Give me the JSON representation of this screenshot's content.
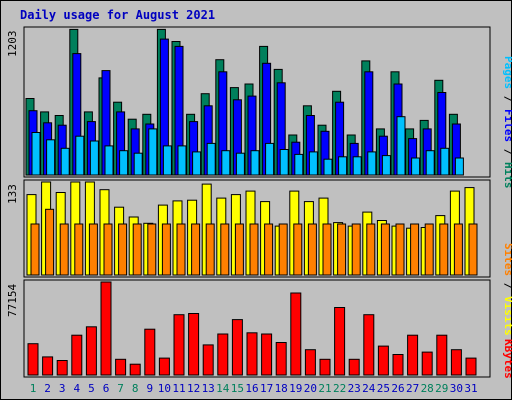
{
  "chart_data": {
    "type": "bar",
    "title": "Daily usage for August 2021",
    "categories": [
      "1",
      "2",
      "3",
      "4",
      "5",
      "6",
      "7",
      "8",
      "9",
      "10",
      "11",
      "12",
      "13",
      "14",
      "15",
      "16",
      "17",
      "18",
      "19",
      "20",
      "21",
      "22",
      "23",
      "24",
      "25",
      "26",
      "27",
      "28",
      "29",
      "30",
      "31"
    ],
    "weekend_days": [
      "1",
      "7",
      "8",
      "14",
      "15",
      "21",
      "22",
      "28",
      "29"
    ],
    "colors": {
      "background": "#c0c0c0",
      "frame": "#000000",
      "title": "#0000c0",
      "hits": "#00805c",
      "files": "#0000ff",
      "pages": "#00c0ff",
      "visits": "#ffff00",
      "sites": "#ff8000",
      "kbytes": "#ff0000",
      "weekday_label": "#0000c0",
      "weekend_label": "#00805c"
    },
    "panels": [
      {
        "name": "top",
        "ymax_label": "1203",
        "ymax": 1203,
        "series": [
          {
            "name": "Hits",
            "color": "#00805c",
            "values": [
              630,
              520,
              490,
              1200,
              520,
              800,
              600,
              460,
              500,
              1200,
              1100,
              500,
              670,
              950,
              720,
              750,
              1060,
              870,
              330,
              570,
              410,
              690,
              330,
              940,
              380,
              850,
              380,
              450,
              780,
              500,
              0
            ]
          },
          {
            "name": "Files",
            "color": "#0000ff",
            "values": [
              530,
              430,
              410,
              1000,
              440,
              860,
              520,
              380,
              420,
              1120,
              1060,
              440,
              570,
              850,
              620,
              650,
              920,
              760,
              270,
              490,
              360,
              600,
              260,
              850,
              320,
              750,
              300,
              380,
              680,
              420,
              0
            ]
          },
          {
            "name": "Pages",
            "color": "#00c0ff",
            "values": [
              350,
              290,
              220,
              320,
              280,
              240,
              200,
              180,
              380,
              240,
              240,
              190,
              260,
              200,
              180,
              200,
              260,
              210,
              170,
              190,
              130,
              150,
              150,
              190,
              160,
              480,
              140,
              200,
              220,
              140,
              0
            ]
          }
        ],
        "legend": [
          {
            "text": "Hits",
            "color": "#00805c"
          },
          {
            "text": "Files",
            "color": "#0000ff"
          },
          {
            "text": "Pages",
            "color": "#00c0ff"
          }
        ]
      },
      {
        "name": "middle",
        "ymax_label": "133",
        "ymax": 133,
        "series": [
          {
            "name": "Visits",
            "color": "#ffff00",
            "values": [
              115,
              133,
              118,
              133,
              133,
              122,
              97,
              83,
              74,
              100,
              106,
              107,
              130,
              110,
              115,
              120,
              105,
              70,
              120,
              105,
              110,
              75,
              70,
              90,
              78,
              70,
              67,
              68,
              85,
              120,
              125
            ]
          },
          {
            "name": "Sites",
            "color": "#ff8000",
            "values": [
              73,
              94,
              73,
              73,
              73,
              73,
              73,
              73,
              73,
              73,
              73,
              73,
              73,
              73,
              73,
              73,
              73,
              73,
              73,
              73,
              73,
              73,
              73,
              73,
              73,
              73,
              73,
              73,
              73,
              73,
              73
            ]
          }
        ],
        "legend": [
          {
            "text": "Visits",
            "color": "#ffff00"
          },
          {
            "text": "Sites",
            "color": "#ff8000"
          }
        ]
      },
      {
        "name": "bottom",
        "ymax_label": "77154",
        "ymax": 77154,
        "series": [
          {
            "name": "KBytes",
            "color": "#ff0000",
            "values": [
              26000,
              15000,
              12000,
              33000,
              40000,
              77154,
              13000,
              9000,
              38000,
              14000,
              50000,
              51000,
              25000,
              34000,
              46000,
              35000,
              34000,
              27000,
              68000,
              21000,
              13000,
              56000,
              13000,
              50000,
              24000,
              17000,
              33000,
              19000,
              33000,
              21000,
              14000
            ]
          }
        ],
        "legend": [
          {
            "text": "KBytes",
            "color": "#ff0000"
          }
        ]
      }
    ]
  }
}
